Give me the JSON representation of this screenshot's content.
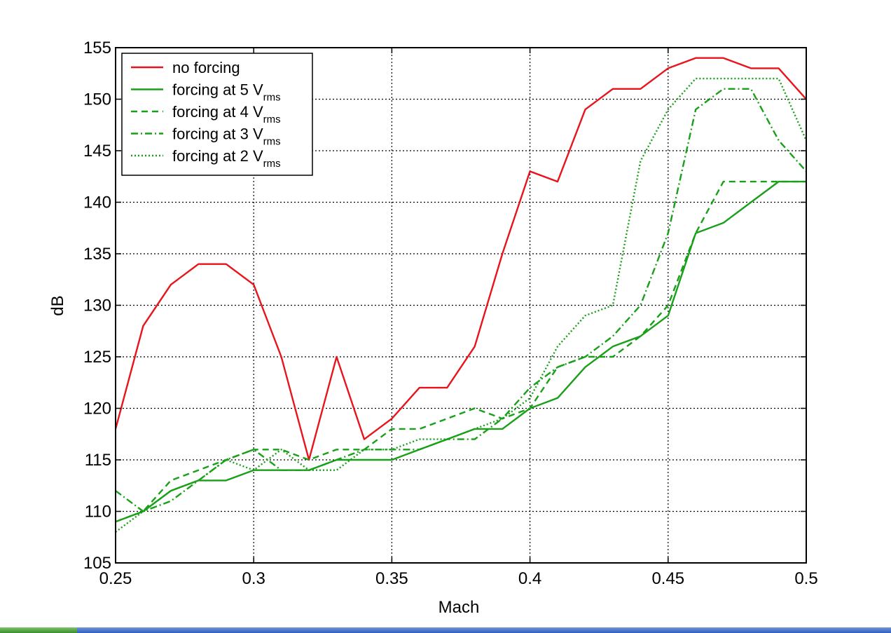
{
  "chart_data": {
    "type": "line",
    "title": "",
    "xlabel": "Mach",
    "ylabel": "dB",
    "xlim": [
      0.25,
      0.5
    ],
    "ylim": [
      105,
      155
    ],
    "grid": true,
    "legend_position": "top-left",
    "x_ticks": [
      "0.25",
      "0.3",
      "0.35",
      "0.4",
      "0.45",
      "0.5"
    ],
    "y_ticks": [
      "105",
      "110",
      "115",
      "120",
      "125",
      "130",
      "135",
      "140",
      "145",
      "150",
      "155"
    ],
    "x": [
      0.25,
      0.26,
      0.27,
      0.28,
      0.29,
      0.3,
      0.31,
      0.32,
      0.33,
      0.34,
      0.35,
      0.36,
      0.37,
      0.38,
      0.39,
      0.4,
      0.41,
      0.42,
      0.43,
      0.44,
      0.45,
      0.46,
      0.47,
      0.48,
      0.49,
      0.5
    ],
    "series": [
      {
        "name": "no forcing",
        "sub": "",
        "color": "#e8141c",
        "dash": "solid",
        "values": [
          118,
          128,
          132,
          134,
          134,
          132,
          125,
          115,
          125,
          117,
          119,
          122,
          122,
          126,
          135,
          143,
          142,
          149,
          151,
          151,
          153,
          154,
          154,
          153,
          153,
          150
        ]
      },
      {
        "name": "forcing at 5 V",
        "sub": "rms",
        "color": "#18a018",
        "dash": "solid",
        "values": [
          109,
          110,
          112,
          113,
          113,
          114,
          114,
          114,
          115,
          115,
          115,
          116,
          117,
          118,
          118,
          120,
          121,
          124,
          126,
          127,
          129,
          137,
          138,
          140,
          142,
          142
        ]
      },
      {
        "name": "forcing at 4 V",
        "sub": "rms",
        "color": "#18a018",
        "dash": "dashed",
        "values": [
          109,
          110,
          113,
          114,
          115,
          116,
          116,
          115,
          116,
          116,
          118,
          118,
          119,
          120,
          119,
          120,
          124,
          125,
          125,
          127,
          130,
          137,
          142,
          142,
          142,
          142
        ]
      },
      {
        "name": "forcing at 3 V",
        "sub": "rms",
        "color": "#18a018",
        "dash": "dashdot",
        "values": [
          112,
          110,
          111,
          113,
          115,
          116,
          114,
          114,
          115,
          116,
          116,
          116,
          117,
          117,
          119,
          122,
          124,
          125,
          127,
          130,
          137,
          149,
          151,
          151,
          146,
          143
        ]
      },
      {
        "name": "forcing at 2 V",
        "sub": "rms",
        "color": "#18a018",
        "dash": "dotted",
        "values": [
          108,
          110,
          112,
          113,
          115,
          114,
          116,
          114,
          114,
          116,
          116,
          117,
          117,
          118,
          119,
          121,
          126,
          129,
          130,
          144,
          149,
          152,
          152,
          152,
          152,
          146
        ]
      }
    ]
  }
}
